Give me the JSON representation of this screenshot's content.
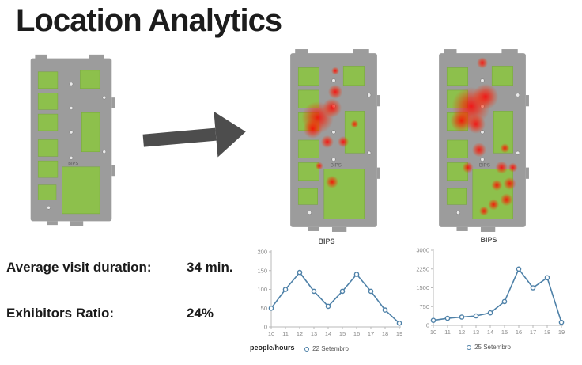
{
  "title": "Location Analytics",
  "stats": {
    "avg_visit_label": "Average visit duration:",
    "avg_visit_value": "34 min.",
    "exhibitors_label": "Exhibitors Ratio:",
    "exhibitors_value": "24%"
  },
  "maps": {
    "venue_label": "BIPS",
    "heat_moderate": [
      [
        40,
        88,
        20
      ],
      [
        58,
        76,
        12
      ],
      [
        34,
        102,
        12
      ],
      [
        62,
        56,
        9
      ],
      [
        72,
        118,
        7
      ],
      [
        52,
        118,
        8
      ],
      [
        58,
        168,
        8
      ],
      [
        42,
        148,
        5
      ],
      [
        62,
        30,
        5
      ],
      [
        86,
        96,
        5
      ]
    ],
    "heat_heavy": [
      [
        46,
        74,
        24
      ],
      [
        64,
        62,
        16
      ],
      [
        34,
        92,
        14
      ],
      [
        52,
        96,
        12
      ],
      [
        60,
        20,
        7
      ],
      [
        56,
        128,
        9
      ],
      [
        42,
        150,
        7
      ],
      [
        84,
        150,
        8
      ],
      [
        94,
        170,
        8
      ],
      [
        78,
        172,
        7
      ],
      [
        90,
        190,
        8
      ],
      [
        74,
        196,
        7
      ],
      [
        62,
        204,
        6
      ],
      [
        88,
        126,
        6
      ],
      [
        98,
        150,
        6
      ]
    ]
  },
  "colors": {
    "line": "#4e81a8",
    "heat": "#ff0000",
    "map_gray": "#9c9c9c",
    "map_green": "#8dc04c",
    "arrow": "#4d4d4d"
  },
  "chart_data": [
    {
      "type": "line",
      "title": "BIPS",
      "x": [
        10,
        11,
        12,
        13,
        14,
        15,
        16,
        17,
        18,
        19
      ],
      "values": [
        50,
        100,
        145,
        95,
        55,
        95,
        140,
        95,
        45,
        10
      ],
      "ylim": [
        0,
        200
      ],
      "yticks": [
        0,
        50,
        100,
        150,
        200
      ],
      "legend": "22 Setembro",
      "axis_note": "people/hours",
      "grid": false,
      "legend_position": "bottom"
    },
    {
      "type": "line",
      "title": "BIPS",
      "x": [
        10,
        11,
        12,
        13,
        14,
        15,
        16,
        17,
        18,
        19
      ],
      "values": [
        200,
        280,
        330,
        380,
        500,
        950,
        2250,
        1500,
        1900,
        120
      ],
      "ylim": [
        0,
        3000
      ],
      "yticks": [
        0,
        750,
        1500,
        2250,
        3000
      ],
      "legend": "25 Setembro",
      "grid": false,
      "legend_position": "bottom"
    }
  ]
}
